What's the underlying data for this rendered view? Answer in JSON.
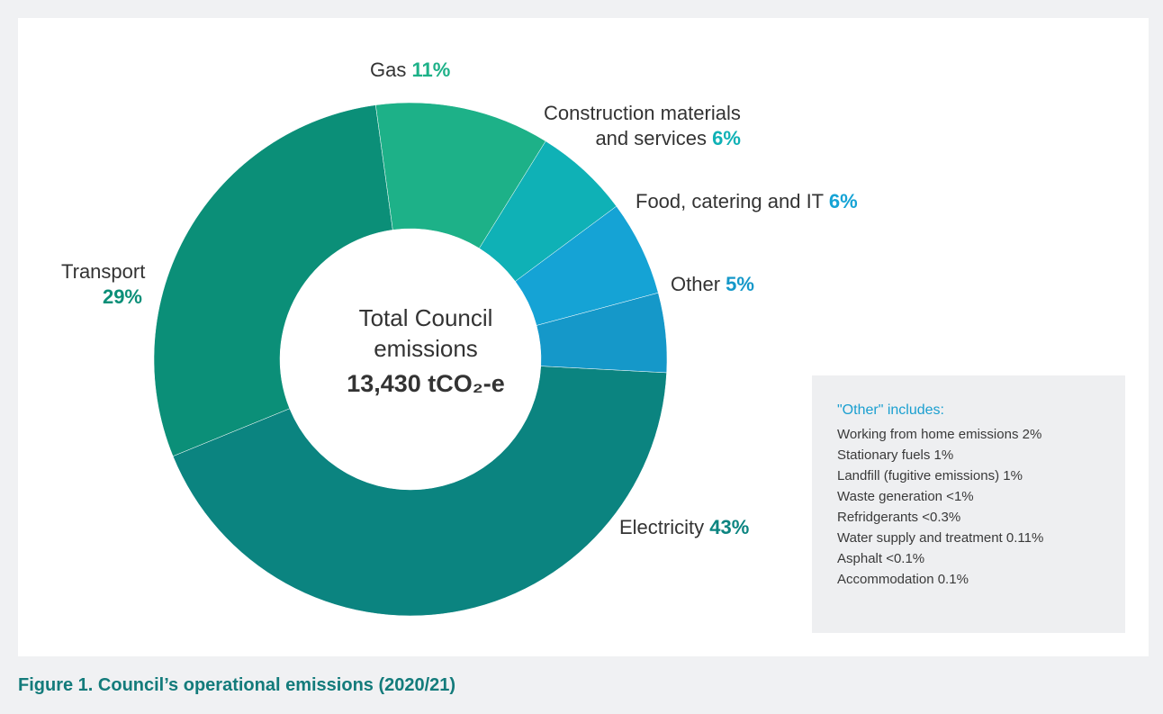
{
  "chart_data": {
    "type": "pie",
    "donut": true,
    "center": {
      "line1": "Total Council",
      "line2": "emissions",
      "total": "13,430 tCO₂-e"
    },
    "slices": [
      {
        "label": "Electricity",
        "pct_label": "43%",
        "value": 43,
        "color": "#0b8480",
        "pct_color": "#0b8480"
      },
      {
        "label": "Transport",
        "pct_label": "29%",
        "value": 29,
        "color": "#0b8f78",
        "pct_color": "#0b8f78"
      },
      {
        "label": "Gas",
        "pct_label": "11%",
        "value": 11,
        "color": "#1db188",
        "pct_color": "#1db188"
      },
      {
        "label": "Construction materials and services",
        "label_line1": "Construction materials",
        "label_line2": "and services",
        "pct_label": "6%",
        "value": 6,
        "color": "#0fb1b6",
        "pct_color": "#0fb1b6"
      },
      {
        "label": "Food, catering and IT",
        "pct_label": "6%",
        "value": 6,
        "color": "#15a3d5",
        "pct_color": "#15a3d5"
      },
      {
        "label": "Other",
        "pct_label": "5%",
        "value": 5,
        "color": "#1598c9",
        "pct_color": "#1598c9"
      }
    ],
    "other_breakdown": {
      "title": "\"Other\" includes:",
      "items": [
        "Working from home emissions 2%",
        "Stationary fuels 1%",
        "Landfill (fugitive emissions) 1%",
        "Waste generation <1%",
        "Refridgerants <0.3%",
        "Water supply and treatment 0.11%",
        "Asphalt <0.1%",
        "Accommodation 0.1%"
      ]
    }
  },
  "caption": "Figure 1. Council’s operational emissions (2020/21)"
}
